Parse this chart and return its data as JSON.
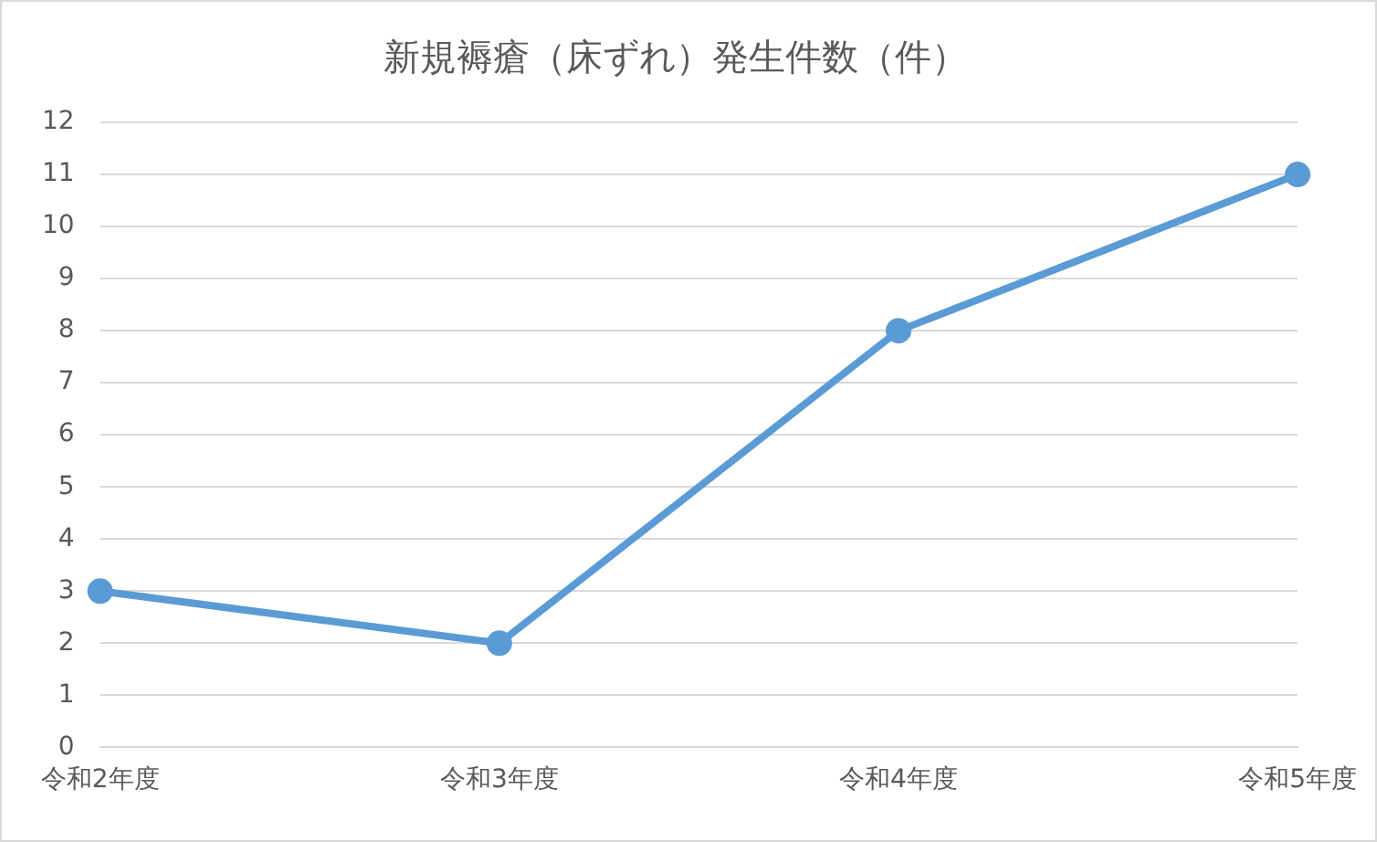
{
  "chart_data": {
    "type": "line",
    "title": "新規褥瘡（床ずれ）発生件数（件）",
    "categories": [
      "令和2年度",
      "令和3年度",
      "令和4年度",
      "令和5年度"
    ],
    "series": [
      {
        "color": "#5b9bd5",
        "values": [
          3,
          2,
          8,
          11
        ]
      }
    ],
    "ylim": [
      0,
      12
    ],
    "yticks": [
      0,
      1,
      2,
      3,
      4,
      5,
      6,
      7,
      8,
      9,
      10,
      11,
      12
    ],
    "grid": "y",
    "legend": false,
    "marker": "circle",
    "line_style": "solid"
  }
}
